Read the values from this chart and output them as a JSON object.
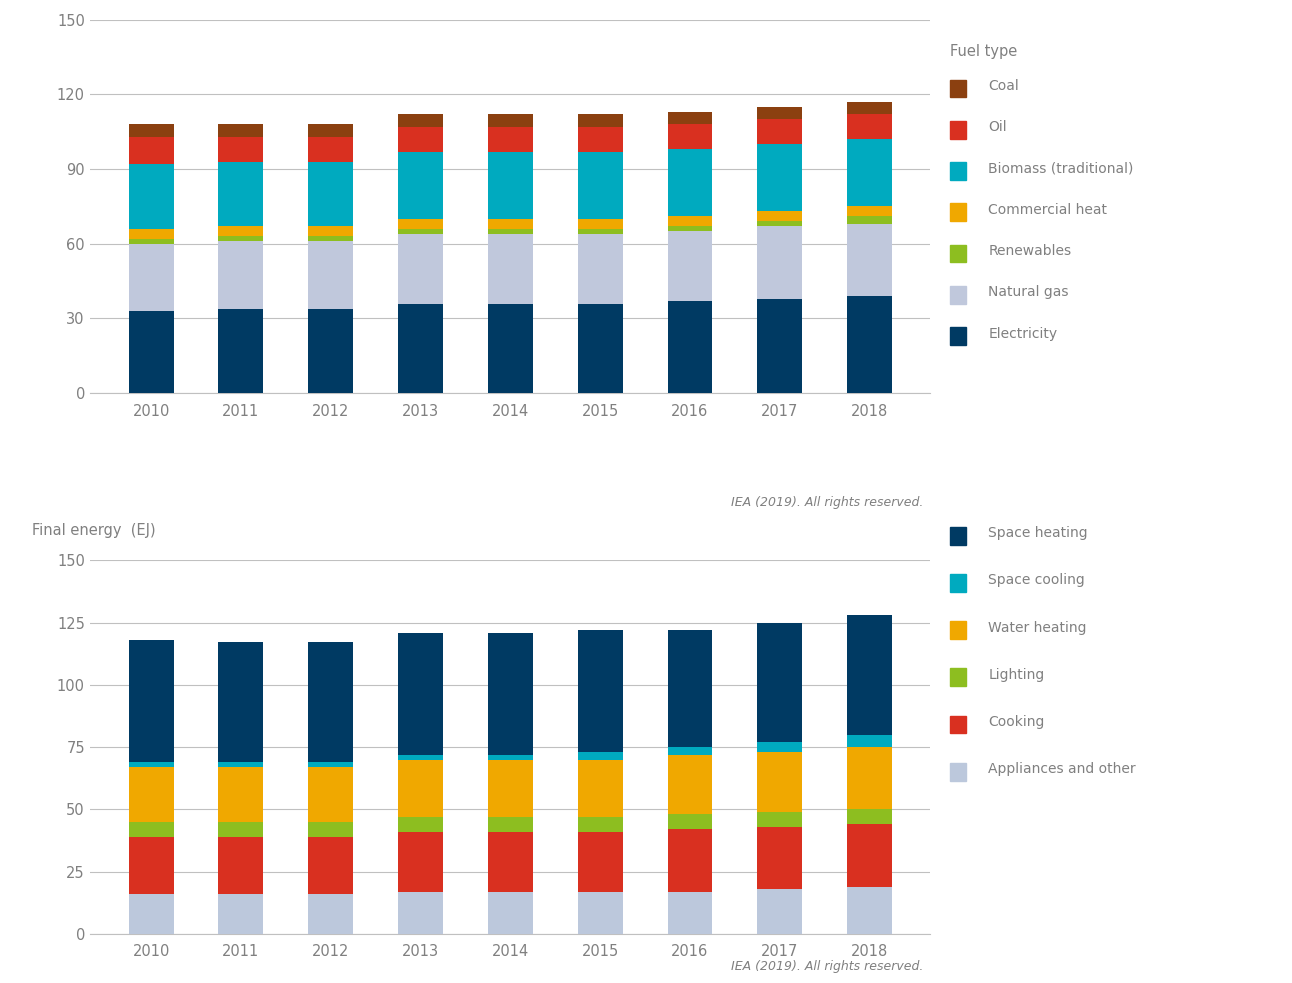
{
  "years": [
    2010,
    2011,
    2012,
    2013,
    2014,
    2015,
    2016,
    2017,
    2018
  ],
  "chart1": {
    "ylabel": "Final energy  (EJ)",
    "legend_title": "Fuel type",
    "ylim": [
      0,
      150
    ],
    "yticks": [
      0,
      30,
      60,
      90,
      120,
      150
    ],
    "series": {
      "Electricity": [
        33,
        34,
        34,
        36,
        36,
        36,
        37,
        38,
        39
      ],
      "Natural gas": [
        27,
        27,
        27,
        28,
        28,
        28,
        28,
        29,
        29
      ],
      "Renewables": [
        2,
        2,
        2,
        2,
        2,
        2,
        2,
        2,
        3
      ],
      "Commercial heat": [
        4,
        4,
        4,
        4,
        4,
        4,
        4,
        4,
        4
      ],
      "Biomass (traditional)": [
        26,
        26,
        26,
        27,
        27,
        27,
        27,
        27,
        27
      ],
      "Oil": [
        11,
        10,
        10,
        10,
        10,
        10,
        10,
        10,
        10
      ],
      "Coal": [
        5,
        5,
        5,
        5,
        5,
        5,
        5,
        5,
        5
      ]
    },
    "colors": {
      "Electricity": "#003a63",
      "Natural gas": "#c0c8dc",
      "Renewables": "#8dbe20",
      "Commercial heat": "#f0a800",
      "Biomass (traditional)": "#00aabf",
      "Oil": "#d93020",
      "Coal": "#8b4010"
    },
    "order": [
      "Electricity",
      "Natural gas",
      "Renewables",
      "Commercial heat",
      "Biomass (traditional)",
      "Oil",
      "Coal"
    ]
  },
  "chart2": {
    "ylabel": "Final energy  (EJ)",
    "ylim": [
      0,
      150
    ],
    "yticks": [
      0,
      25,
      50,
      75,
      100,
      125,
      150
    ],
    "series": {
      "Appliances and other": [
        16,
        16,
        16,
        17,
        17,
        17,
        17,
        18,
        19
      ],
      "Cooking": [
        23,
        23,
        23,
        24,
        24,
        24,
        25,
        25,
        25
      ],
      "Lighting": [
        6,
        6,
        6,
        6,
        6,
        6,
        6,
        6,
        6
      ],
      "Water heating": [
        22,
        22,
        22,
        23,
        23,
        23,
        24,
        24,
        25
      ],
      "Space cooling": [
        2,
        2,
        2,
        2,
        2,
        3,
        3,
        4,
        5
      ],
      "Space heating": [
        49,
        48,
        48,
        49,
        49,
        49,
        47,
        48,
        48
      ]
    },
    "colors": {
      "Appliances and other": "#bcc8dc",
      "Cooking": "#d93020",
      "Lighting": "#8dbe20",
      "Water heating": "#f0a800",
      "Space cooling": "#00aabf",
      "Space heating": "#003a63"
    },
    "order": [
      "Appliances and other",
      "Cooking",
      "Lighting",
      "Water heating",
      "Space cooling",
      "Space heating"
    ]
  },
  "iea_text": "IEA (2019). All rights reserved.",
  "bg_color": "#ffffff",
  "text_color": "#808080",
  "grid_color": "#c0c0c0"
}
